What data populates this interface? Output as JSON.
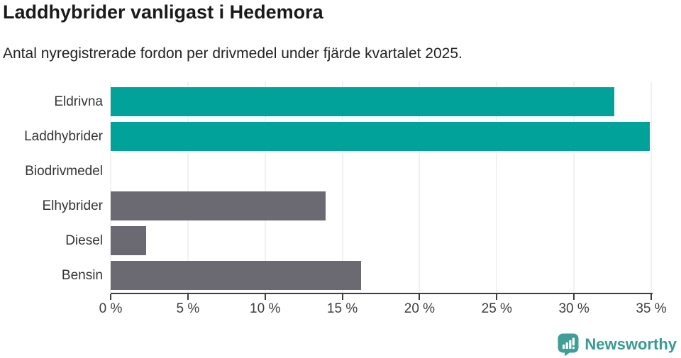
{
  "header": {
    "title": "Laddhybrider vanligast i Hedemora",
    "subtitle": "Antal nyregistrerade fordon per drivmedel under fjärde kvartalet 2025."
  },
  "chart_data": {
    "type": "bar",
    "orientation": "horizontal",
    "title": "Laddhybrider vanligast i Hedemora",
    "subtitle": "Antal nyregistrerade fordon per drivmedel under fjärde kvartalet 2025.",
    "categories": [
      "Eldrivna",
      "Laddhybrider",
      "Biodrivmedel",
      "Elhybrider",
      "Diesel",
      "Bensin"
    ],
    "values": [
      32.6,
      34.9,
      0,
      13.9,
      2.3,
      16.2
    ],
    "unit": "%",
    "series": [
      {
        "label": "Eldrivna",
        "value": 32.6,
        "color": "#00a29a"
      },
      {
        "label": "Laddhybrider",
        "value": 34.9,
        "color": "#00a29a"
      },
      {
        "label": "Biodrivmedel",
        "value": 0,
        "color": "#6b6a72"
      },
      {
        "label": "Elhybrider",
        "value": 13.9,
        "color": "#6b6a72"
      },
      {
        "label": "Diesel",
        "value": 2.3,
        "color": "#6b6a72"
      },
      {
        "label": "Bensin",
        "value": 16.2,
        "color": "#6b6a72"
      }
    ],
    "xlim": [
      0,
      35
    ],
    "x_ticks": [
      {
        "value": 0,
        "label": "0 %"
      },
      {
        "value": 5,
        "label": "5 %"
      },
      {
        "value": 10,
        "label": "10 %"
      },
      {
        "value": 15,
        "label": "15 %"
      },
      {
        "value": 20,
        "label": "20 %"
      },
      {
        "value": 25,
        "label": "25 %"
      },
      {
        "value": 30,
        "label": "30 %"
      },
      {
        "value": 35,
        "label": "35 %"
      }
    ],
    "grid": "vertical-gridlines-on",
    "legend": "none"
  },
  "colors": {
    "highlight_bar": "#00a29a",
    "default_bar": "#6b6a72",
    "gridline": "#e3e3e3",
    "axis": "#3d3d3d",
    "title_text": "#1a1a1a",
    "label_text": "#333333",
    "brand_teal": "#3a9a93",
    "logo_icon_teal": "#3f9e97"
  },
  "footer": {
    "brand": "Newsworthy",
    "logo_icon": "newsworthy-speech-bubble-bar-chart-icon"
  }
}
